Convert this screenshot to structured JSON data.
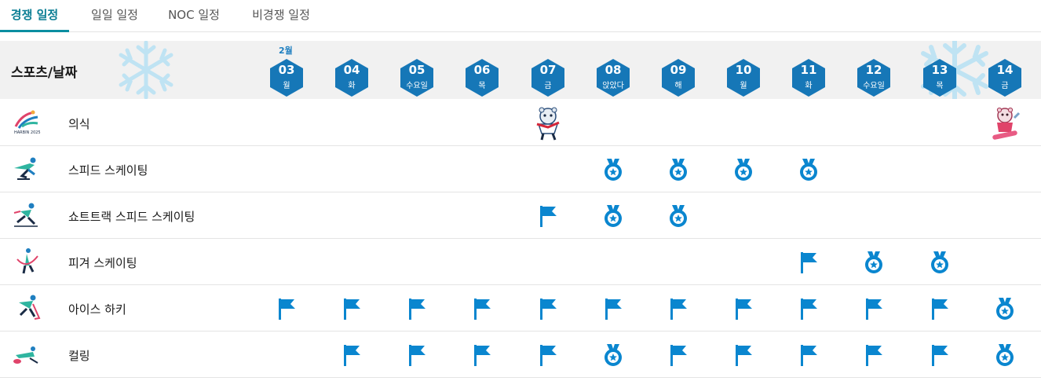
{
  "tabs": [
    {
      "label": "경쟁 일정",
      "active": true
    },
    {
      "label": "일일 일정",
      "active": false
    },
    {
      "label": "NOC 일정",
      "active": false
    },
    {
      "label": "비경쟁 일정",
      "active": false
    }
  ],
  "header": {
    "sport_date_label": "스포츠/날짜",
    "month_label": "2월"
  },
  "days": [
    {
      "num": "03",
      "weekday": "월"
    },
    {
      "num": "04",
      "weekday": "화"
    },
    {
      "num": "05",
      "weekday": "수요일"
    },
    {
      "num": "06",
      "weekday": "목"
    },
    {
      "num": "07",
      "weekday": "금"
    },
    {
      "num": "08",
      "weekday": "앉았다"
    },
    {
      "num": "09",
      "weekday": "해"
    },
    {
      "num": "10",
      "weekday": "월"
    },
    {
      "num": "11",
      "weekday": "화"
    },
    {
      "num": "12",
      "weekday": "수요일"
    },
    {
      "num": "13",
      "weekday": "목"
    },
    {
      "num": "14",
      "weekday": "금"
    }
  ],
  "sports": [
    {
      "name": "의식",
      "icon": "harbin-2025-logo-icon",
      "cells": [
        "",
        "",
        "",
        "",
        "mascot-open",
        "",
        "",
        "",
        "",
        "",
        "",
        "mascot-close"
      ]
    },
    {
      "name": "스피드 스케이팅",
      "icon": "speed-skating-icon",
      "cells": [
        "",
        "",
        "",
        "",
        "",
        "medal",
        "medal",
        "medal",
        "medal",
        "",
        "",
        ""
      ]
    },
    {
      "name": "쇼트트랙 스피드 스케이팅",
      "icon": "short-track-icon",
      "cells": [
        "",
        "",
        "",
        "",
        "flag",
        "medal",
        "medal",
        "",
        "",
        "",
        "",
        ""
      ]
    },
    {
      "name": "피겨 스케이팅",
      "icon": "figure-skating-icon",
      "cells": [
        "",
        "",
        "",
        "",
        "",
        "",
        "",
        "",
        "flag",
        "medal",
        "medal",
        ""
      ]
    },
    {
      "name": "아이스 하키",
      "icon": "ice-hockey-icon",
      "cells": [
        "flag",
        "flag",
        "flag",
        "flag",
        "flag",
        "flag",
        "flag",
        "flag",
        "flag",
        "flag",
        "flag",
        "medal"
      ]
    },
    {
      "name": "컬링",
      "icon": "curling-icon",
      "cells": [
        "",
        "flag",
        "flag",
        "flag",
        "flag",
        "medal",
        "flag",
        "flag",
        "flag",
        "flag",
        "flag",
        "medal"
      ]
    }
  ],
  "colors": {
    "accent": "#0b8ea0",
    "event_blue": "#0a86cf",
    "hexagon": "#1677b7",
    "header_bg": "#f1f1f1",
    "snowflake": "#bfe3f3"
  }
}
